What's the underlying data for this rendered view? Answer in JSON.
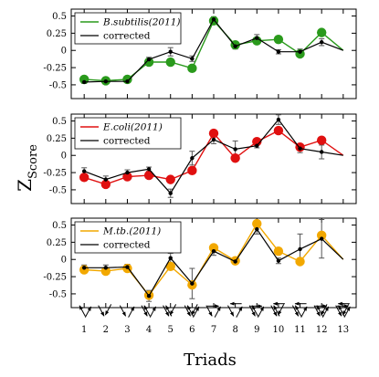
{
  "chart_data": [
    {
      "type": "line",
      "x": [
        1,
        2,
        3,
        4,
        5,
        6,
        7,
        8,
        9,
        10,
        11,
        12,
        13
      ],
      "ylim": [
        -0.7,
        0.6
      ],
      "yticks": [
        -0.5,
        -0.25,
        0,
        0.25,
        0.5
      ],
      "ytick_labels": [
        "-0.5",
        "-0.25",
        "0",
        "0.25",
        "0.5"
      ],
      "grid": false,
      "legend_position": "top-left",
      "series": [
        {
          "name": "B.subtilis(2011)",
          "color": "#2a9a1c",
          "marker": "large-circle",
          "values": [
            -0.42,
            -0.44,
            -0.42,
            -0.17,
            -0.17,
            -0.26,
            0.43,
            0.08,
            0.14,
            0.16,
            -0.05,
            0.26,
            0.0
          ]
        },
        {
          "name": "corrected",
          "color": "#000000",
          "marker": "small-dot",
          "values": [
            -0.46,
            -0.45,
            -0.45,
            -0.13,
            -0.02,
            -0.12,
            0.45,
            0.06,
            0.18,
            -0.02,
            -0.02,
            0.12,
            0.0
          ],
          "errors": [
            0.02,
            0.02,
            0.02,
            0.03,
            0.06,
            0.04,
            0.04,
            0.04,
            0.05,
            0.03,
            0.04,
            0.05,
            0.0
          ]
        }
      ]
    },
    {
      "type": "line",
      "x": [
        1,
        2,
        3,
        4,
        5,
        6,
        7,
        8,
        9,
        10,
        11,
        12,
        13
      ],
      "ylim": [
        -0.7,
        0.6
      ],
      "yticks": [
        -0.5,
        -0.25,
        0,
        0.25,
        0.5
      ],
      "ytick_labels": [
        "-0.5",
        "-0.25",
        "0",
        "0.25",
        "0.5"
      ],
      "grid": false,
      "legend_position": "top-left",
      "series": [
        {
          "name": "E.coli(2011)",
          "color": "#e01010",
          "marker": "large-circle",
          "values": [
            -0.32,
            -0.42,
            -0.31,
            -0.29,
            -0.35,
            -0.22,
            0.32,
            -0.04,
            0.2,
            0.36,
            0.12,
            0.22,
            0.0
          ]
        },
        {
          "name": "corrected",
          "color": "#000000",
          "marker": "small-dot",
          "values": [
            -0.23,
            -0.35,
            -0.25,
            -0.2,
            -0.55,
            -0.04,
            0.23,
            0.09,
            0.14,
            0.52,
            0.1,
            0.05,
            0.0
          ],
          "errors": [
            0.05,
            0.05,
            0.04,
            0.03,
            0.06,
            0.1,
            0.06,
            0.12,
            0.03,
            0.07,
            0.06,
            0.1,
            0.0
          ]
        }
      ]
    },
    {
      "type": "line",
      "x": [
        1,
        2,
        3,
        4,
        5,
        6,
        7,
        8,
        9,
        10,
        11,
        12,
        13
      ],
      "ylim": [
        -0.7,
        0.6
      ],
      "yticks": [
        -0.5,
        -0.25,
        0,
        0.25,
        0.5
      ],
      "ytick_labels": [
        "-0.5",
        "-0.25",
        "0",
        "0.25",
        "0.5"
      ],
      "grid": false,
      "legend_position": "top-left",
      "series": [
        {
          "name": "M.tb.(2011)",
          "color": "#f2a800",
          "marker": "large-circle",
          "values": [
            -0.15,
            -0.17,
            -0.13,
            -0.52,
            -0.1,
            -0.37,
            0.17,
            -0.02,
            0.52,
            0.12,
            -0.03,
            0.35,
            0.0
          ]
        },
        {
          "name": "corrected",
          "color": "#000000",
          "marker": "small-dot",
          "values": [
            -0.12,
            -0.12,
            -0.11,
            -0.53,
            0.02,
            -0.35,
            0.12,
            -0.03,
            0.44,
            -0.02,
            0.15,
            0.3,
            0.0
          ],
          "errors": [
            0.04,
            0.04,
            0.04,
            0.08,
            0.07,
            0.22,
            0.06,
            0.03,
            0.07,
            0.04,
            0.22,
            0.28,
            0.0
          ]
        }
      ]
    }
  ],
  "labels": {
    "y_main": "Z",
    "y_sub": "Score",
    "x_title": "Triads",
    "triad_numbers": [
      "1",
      "2",
      "3",
      "4",
      "5",
      "6",
      "7",
      "8",
      "9",
      "10",
      "11",
      "12",
      "13"
    ]
  }
}
